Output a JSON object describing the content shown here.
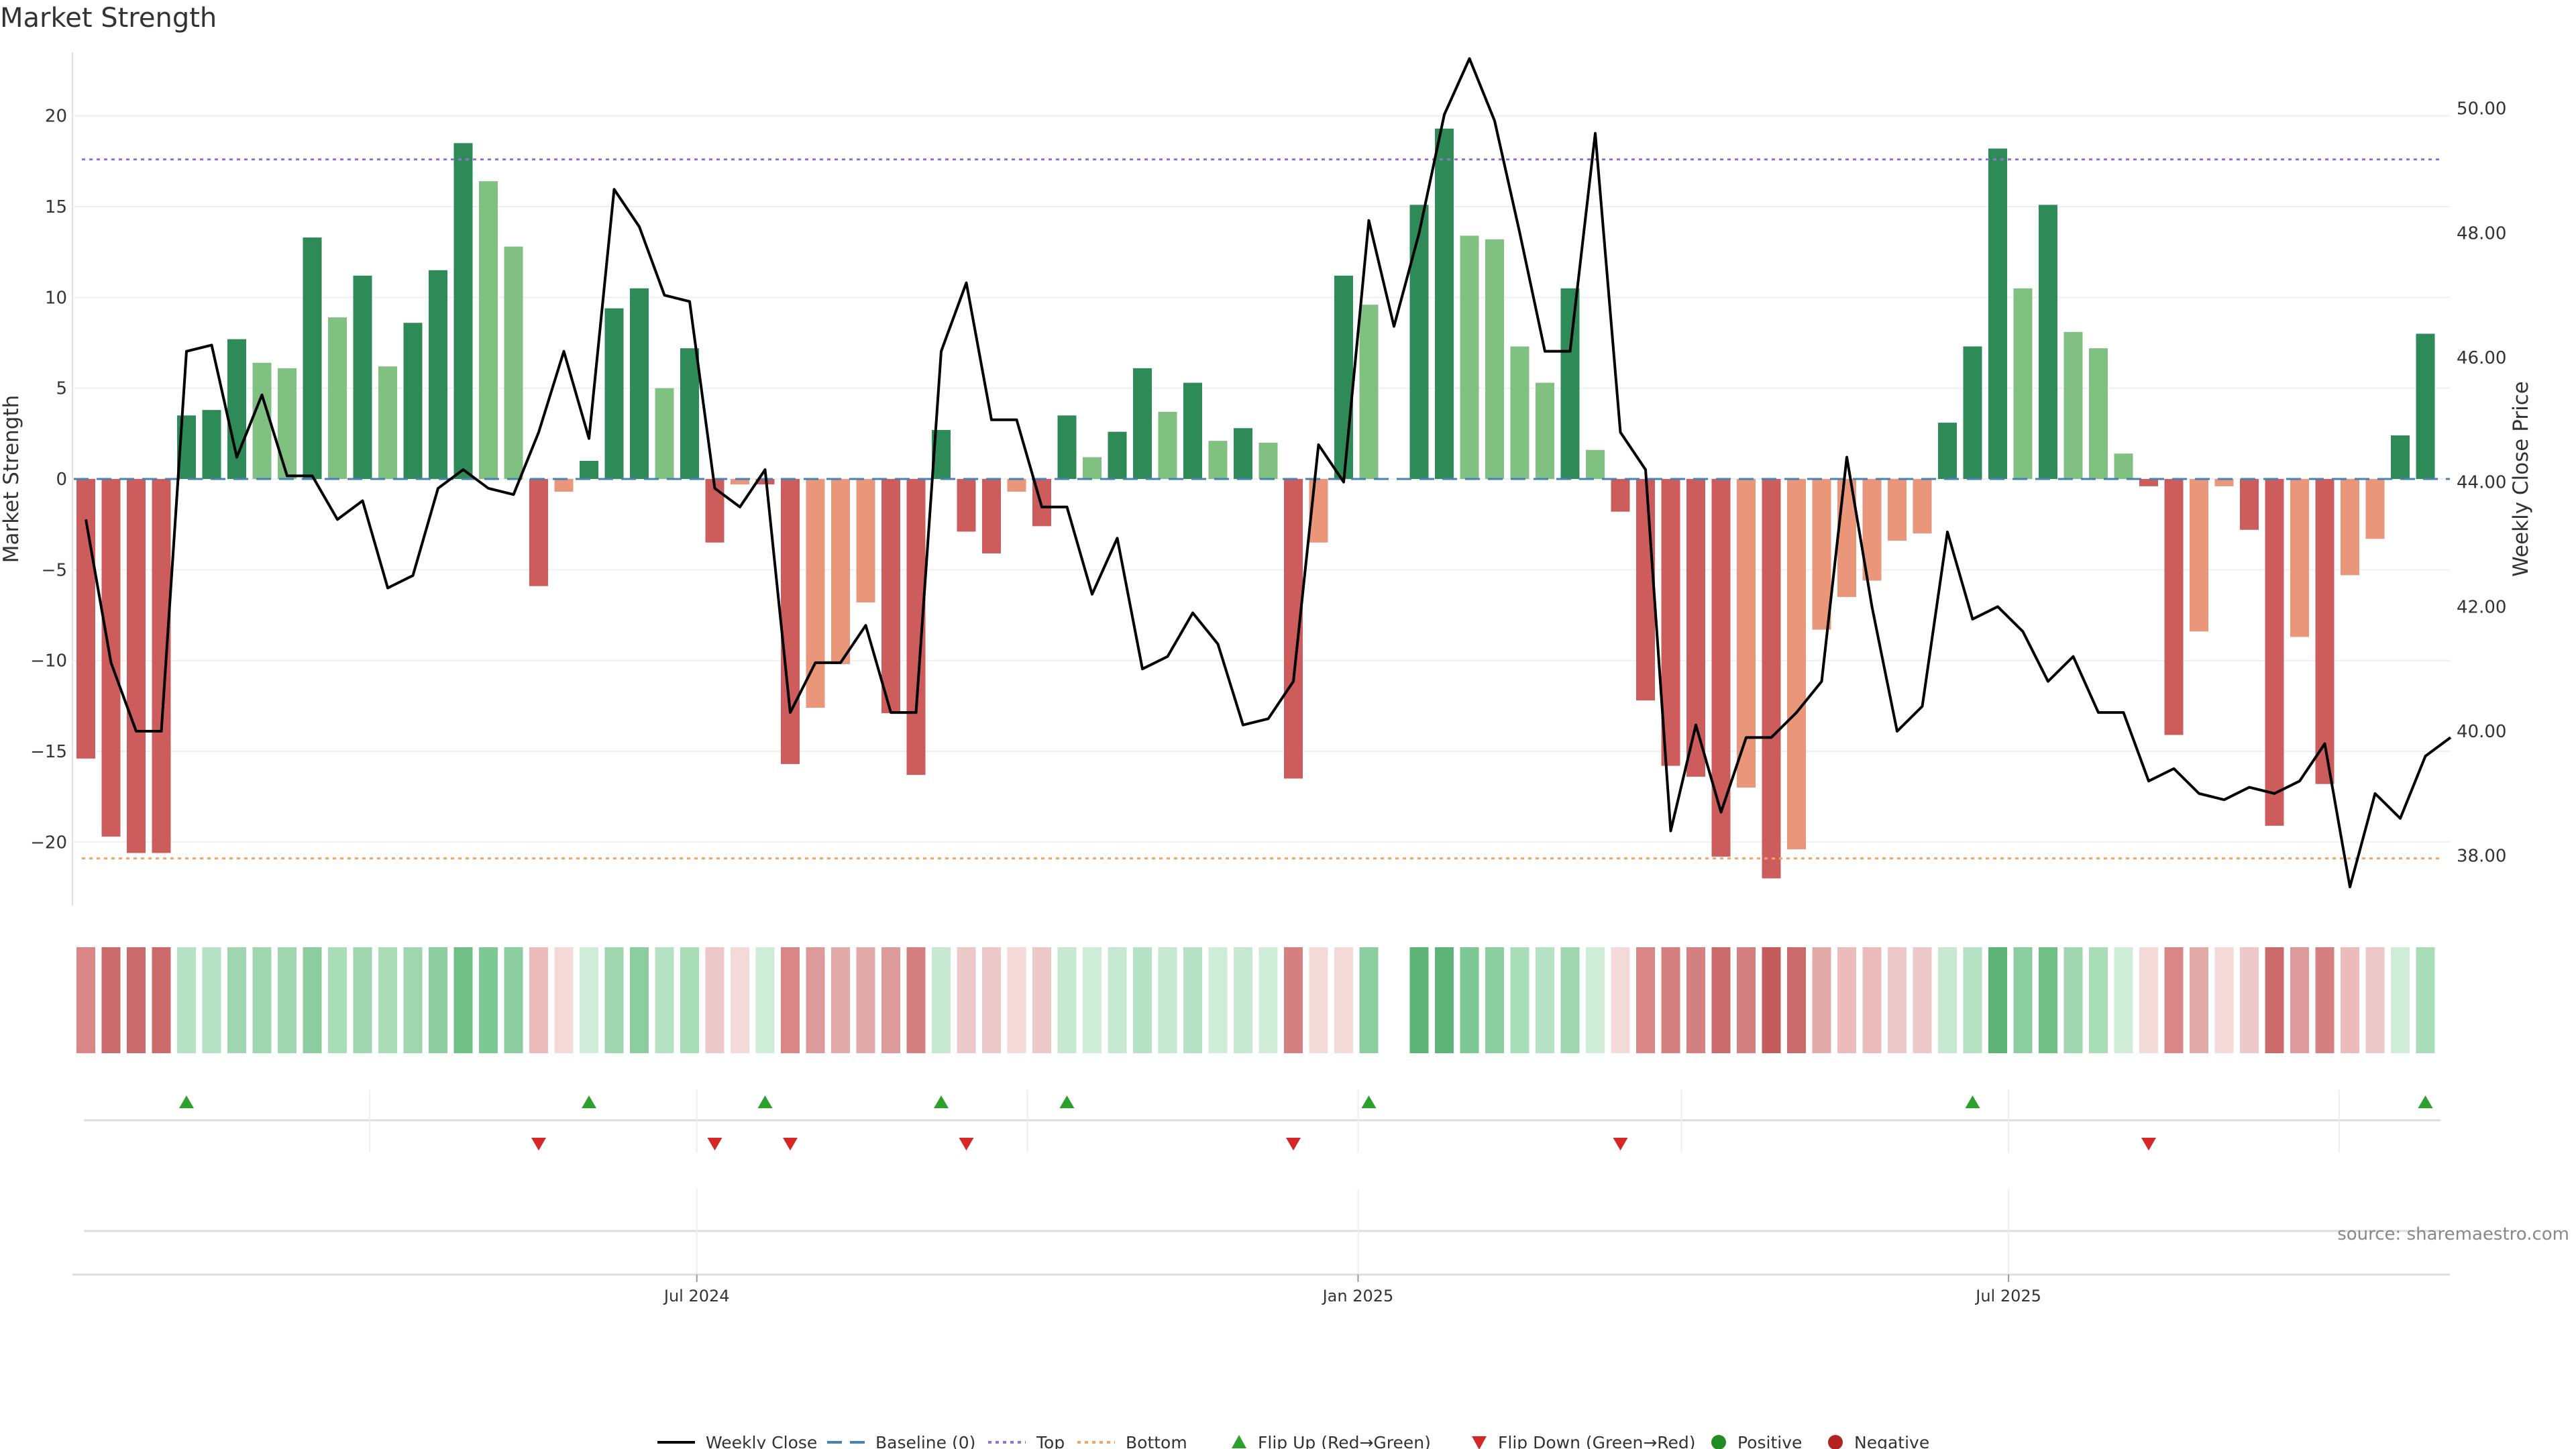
{
  "chart_data": {
    "type": "bar",
    "title": "Market Strength",
    "ylabel": "Market Strength",
    "y2label": "Weekly Close Price",
    "ylim": [
      -23.5,
      23.5
    ],
    "y2lim": [
      37.2,
      50.9
    ],
    "yticks": [
      20,
      15,
      10,
      5,
      0,
      -5,
      -10,
      -15,
      -20
    ],
    "y2ticks": [
      "50.00",
      "48.00",
      "46.00",
      "44.00",
      "42.00",
      "40.00",
      "38.00"
    ],
    "x_start": "2024-01-13",
    "week_days": 7,
    "xticks": [
      {
        "label": "Jul 2024",
        "date": "2024-07-01"
      },
      {
        "label": "Jan 2025",
        "date": "2025-01-01"
      },
      {
        "label": "Jul 2025",
        "date": "2025-07-01"
      }
    ],
    "top_level": 17.6,
    "bottom_level": -20.9,
    "baseline": 0,
    "series": [
      {
        "name": "Market Strength",
        "values": [
          -15.4,
          -19.7,
          -20.6,
          -20.6,
          3.5,
          3.8,
          7.7,
          6.4,
          6.1,
          13.3,
          8.9,
          11.2,
          6.2,
          8.6,
          11.5,
          18.5,
          16.4,
          12.8,
          -5.9,
          -0.7,
          1.0,
          9.4,
          10.5,
          5.0,
          7.2,
          -3.5,
          -0.3,
          -0.3,
          -15.7,
          -12.6,
          -10.2,
          -6.8,
          -12.9,
          -16.3,
          2.7,
          -2.9,
          -4.1,
          -0.7,
          -2.6,
          3.5,
          1.2,
          2.6,
          6.1,
          3.7,
          5.3,
          2.1,
          2.8,
          2.0,
          -16.5,
          -3.5,
          11.2,
          9.6,
          null,
          15.1,
          19.3,
          13.4,
          13.2,
          7.3,
          5.3,
          10.5,
          1.6,
          -1.8,
          -12.2,
          -15.8,
          -16.4,
          -20.8,
          -17.0,
          -22.0,
          -20.4,
          -8.3,
          -6.5,
          -5.6,
          -3.4,
          -3.0,
          3.1,
          7.3,
          18.2,
          10.5,
          15.1,
          8.1,
          7.2,
          1.4,
          -0.4,
          -14.1,
          -8.4,
          -0.4,
          -2.8,
          -19.1,
          -8.7,
          -16.8,
          -5.3,
          -3.3,
          2.4,
          8.0
        ]
      },
      {
        "name": "Weekly Close",
        "values": [
          43.4,
          41.1,
          40.0,
          40.0,
          46.1,
          46.2,
          44.4,
          45.4,
          44.1,
          44.1,
          43.4,
          43.7,
          42.3,
          42.5,
          43.9,
          44.2,
          43.9,
          43.8,
          44.8,
          46.1,
          44.7,
          48.7,
          48.1,
          47.0,
          46.9,
          43.9,
          43.6,
          44.2,
          40.3,
          41.1,
          41.1,
          41.7,
          40.3,
          40.3,
          46.1,
          47.2,
          45.0,
          45.0,
          43.6,
          43.6,
          42.2,
          43.1,
          41.0,
          41.2,
          41.9,
          41.4,
          40.1,
          40.2,
          40.8,
          44.6,
          44.0,
          48.2,
          46.5,
          48.0,
          49.9,
          50.8,
          49.8,
          48.0,
          46.1,
          46.1,
          49.6,
          44.8,
          44.2,
          38.4,
          40.1,
          38.7,
          39.9,
          39.9,
          40.3,
          40.8,
          44.4,
          42.0,
          40.0,
          40.4,
          43.2,
          41.8,
          42.0,
          41.6,
          40.8,
          41.2,
          40.3,
          40.3,
          39.2,
          39.4,
          39.0,
          38.9,
          39.1,
          39.0,
          39.2,
          39.8,
          37.5,
          39.0,
          38.6,
          39.6,
          39.9
        ]
      }
    ],
    "strip_colors": [
      "#d88686",
      "#cb6a6a",
      "#cb6a6a",
      "#cb6a6a",
      "#b5e2c4",
      "#b5e2c4",
      "#9fd6af",
      "#9fd6af",
      "#9fd6af",
      "#8ccd9f",
      "#a9ddb8",
      "#9fd6af",
      "#a9ddb8",
      "#9fd6af",
      "#8ccd9f",
      "#6fbf86",
      "#7dc794",
      "#8ccd9f",
      "#ecbcbc",
      "#f4d9d9",
      "#cfecd8",
      "#9fd6af",
      "#8ccd9f",
      "#b5e2c4",
      "#a9ddb8",
      "#ecc8c8",
      "#f4d9d9",
      "#cfecd8",
      "#d88686",
      "#dd9a9a",
      "#e3aaaa",
      "#e3aaaa",
      "#dd9a9a",
      "#d58080",
      "#c6e8d0",
      "#ecc8c8",
      "#ecc8c8",
      "#f4d9d9",
      "#ecc8c8",
      "#c6e8d0",
      "#cfecd8",
      "#c6e8d0",
      "#b5e2c4",
      "#c6e8d0",
      "#b5e2c4",
      "#cfecd8",
      "#c6e8d0",
      "#cfecd8",
      "#d58080",
      "#f4d9d9",
      "#f4d9d9",
      "#8ccd9f",
      null,
      "#5cb476",
      "#5cb476",
      "#7dc794",
      "#8ccd9f",
      "#a9ddb8",
      "#b5e2c4",
      "#9fd6af",
      "#cfecd8",
      "#f4d9d9",
      "#d88686",
      "#d58080",
      "#d58080",
      "#cb6a6a",
      "#d58080",
      "#c55c5c",
      "#cb6a6a",
      "#e3aaaa",
      "#ecbcbc",
      "#ecbcbc",
      "#ecc8c8",
      "#ecc8c8",
      "#c6e8d0",
      "#b5e2c4",
      "#5cb476",
      "#8ccd9f",
      "#6fbf86",
      "#9fd6af",
      "#a9ddb8",
      "#cfecd8",
      "#f4d9d9",
      "#d88686",
      "#e3aaaa",
      "#f4d9d9",
      "#ecc8c8",
      "#cb6a6a",
      "#dd9a9a",
      "#d58080",
      "#ecbcbc",
      "#ecc8c8",
      "#cfecd8",
      "#a9ddb8"
    ],
    "flip_up_weeks": [
      4,
      20,
      27,
      34,
      39,
      51,
      75,
      93
    ],
    "flip_down_weeks": [
      18,
      25,
      28,
      35,
      48,
      61,
      82
    ],
    "legend": [
      "Weekly Close",
      "Baseline (0)",
      "Top",
      "Bottom",
      "Flip Up (Red→Green)",
      "Flip Down (Green→Red)",
      "Positive",
      "Negative"
    ],
    "colors": {
      "pos_strong": "#2e8b57",
      "pos_light": "#80c080",
      "neg_strong": "#cd5c5c",
      "neg_light": "#e9967a",
      "baseline": "#4682b4",
      "top": "#9370db",
      "bottom": "#f4a460",
      "price": "#000000",
      "flip_up": "#2ca02c",
      "flip_down": "#d62728",
      "positive_dot": "#228b22",
      "negative_dot": "#b22222"
    }
  },
  "source_note": "source: sharemaestro.com"
}
